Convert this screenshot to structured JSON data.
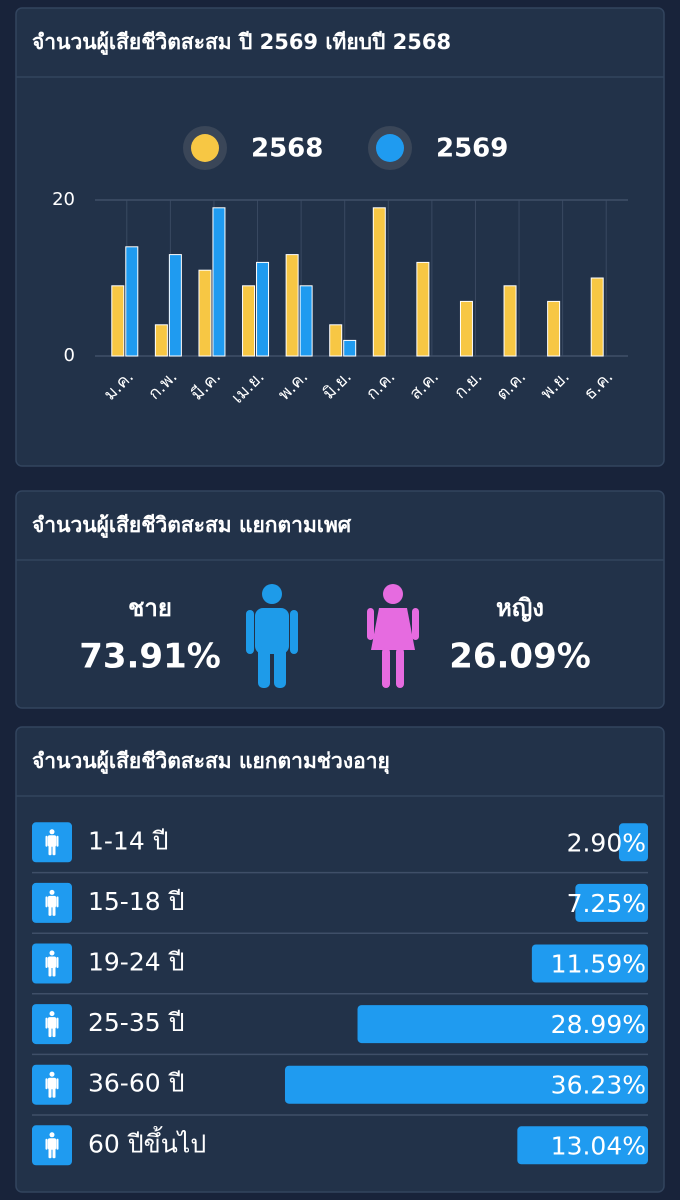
{
  "chart_data": [
    {
      "type": "bar",
      "title": "จำนวนผู้เสียชีวิตสะสม ปี 2569 เทียบปี 2568",
      "categories": [
        "ม.ค.",
        "ก.พ.",
        "มี.ค.",
        "เม.ย.",
        "พ.ค.",
        "มิ.ย.",
        "ก.ค.",
        "ส.ค.",
        "ก.ย.",
        "ต.ค.",
        "พ.ย.",
        "ธ.ค."
      ],
      "series": [
        {
          "name": "2568",
          "color": "#f7c744",
          "values": [
            9,
            4,
            11,
            9,
            13,
            4,
            19,
            12,
            7,
            9,
            7,
            10
          ]
        },
        {
          "name": "2569",
          "color": "#1f9bf0",
          "values": [
            14,
            13,
            19,
            12,
            9,
            2,
            null,
            null,
            null,
            null,
            null,
            null
          ]
        }
      ],
      "ylim": [
        0,
        20
      ],
      "yticks": [
        0,
        20
      ],
      "grid": true
    },
    {
      "type": "gender",
      "title": "จำนวนผู้เสียชีวิตสะสม แยกตามเพศ",
      "categories": [
        "ชาย",
        "หญิง"
      ],
      "values": [
        73.91,
        26.09
      ],
      "value_labels": [
        "73.91%",
        "26.09%"
      ],
      "colors": [
        "#1e9be9",
        "#e66be0"
      ]
    },
    {
      "type": "hbar",
      "title": "จำนวนผู้เสียชีวิตสะสม แยกตามช่วงอายุ",
      "categories": [
        "1-14 ปี",
        "15-18 ปี",
        "19-24 ปี",
        "25-35 ปี",
        "36-60 ปี",
        "60 ปีขึ้นไป"
      ],
      "values": [
        2.9,
        7.25,
        11.59,
        28.99,
        36.23,
        13.04
      ],
      "value_labels": [
        "2.90%",
        "7.25%",
        "11.59%",
        "28.99%",
        "36.23%",
        "13.04%"
      ],
      "color": "#1f9bf0"
    }
  ]
}
